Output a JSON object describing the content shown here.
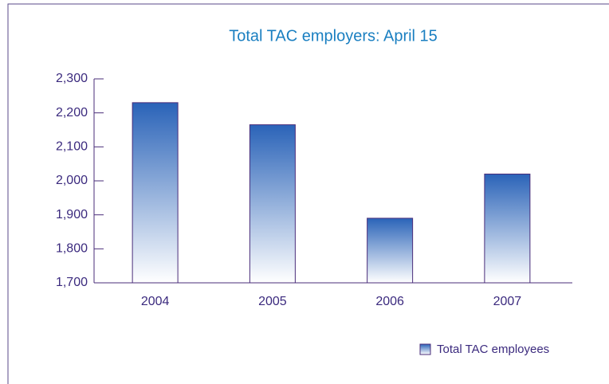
{
  "chart_data": {
    "type": "bar",
    "title": "Total TAC employers: April 15",
    "categories": [
      "2004",
      "2005",
      "2006",
      "2007"
    ],
    "series": [
      {
        "name": "Total TAC employees",
        "color": "#2a63b8",
        "values": [
          2230,
          2165,
          1890,
          2020
        ]
      }
    ],
    "ylim": [
      1700,
      2300
    ],
    "yticks": [
      {
        "value": 1700,
        "label": "1,700"
      },
      {
        "value": 1800,
        "label": "1,800"
      },
      {
        "value": 1900,
        "label": "1,900"
      },
      {
        "value": 2000,
        "label": "2,000"
      },
      {
        "value": 2100,
        "label": "2,100"
      },
      {
        "value": 2200,
        "label": "2,200"
      },
      {
        "value": 2300,
        "label": "2,300"
      }
    ],
    "legend": "bottom-right"
  }
}
